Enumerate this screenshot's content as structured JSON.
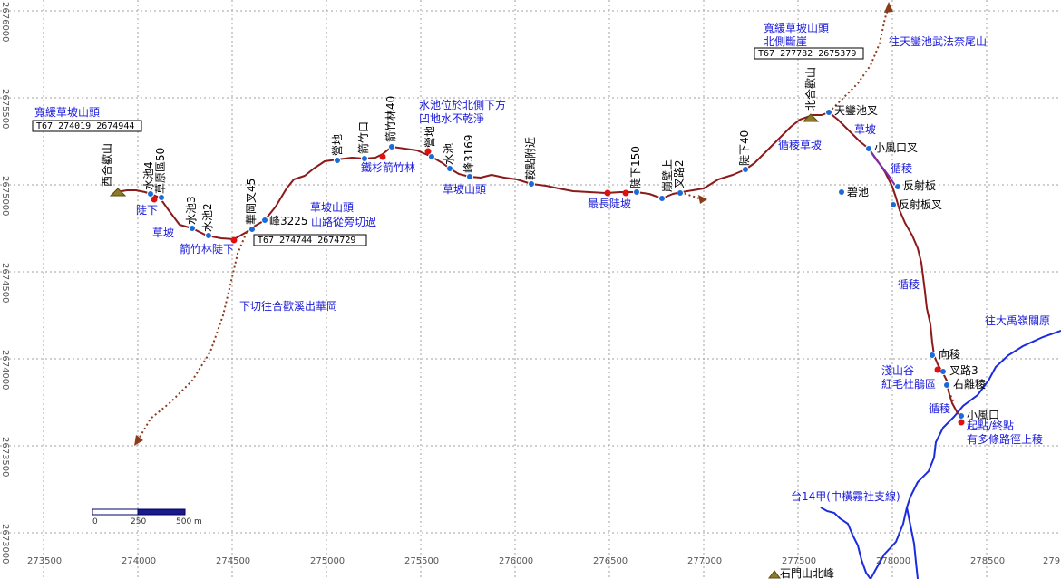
{
  "map": {
    "colors": {
      "trail": "#8b1a1a",
      "side_trail": "#7b2cb4",
      "dotted": "#8b3a1a",
      "road": "#1a2be0",
      "waypoint": "#1a6ad8",
      "red_point": "#e01010",
      "note": "#1a1adc"
    },
    "x_ticks": [
      "273500",
      "274000",
      "274500",
      "275000",
      "275500",
      "276000",
      "276500",
      "277000",
      "277500",
      "278000",
      "278500",
      "279"
    ],
    "y_ticks": [
      "2676000",
      "2675500",
      "2675000",
      "2674500",
      "2674000",
      "2673500",
      "2673000"
    ],
    "scale_bar": {
      "labels": [
        "0",
        "250",
        "500 m"
      ]
    },
    "peaks": [
      {
        "label": "西合歡山"
      },
      {
        "label": "北合歡山"
      },
      {
        "label": "石門山北峰"
      }
    ],
    "waypoints": [
      {
        "label": "水池4"
      },
      {
        "label": "草原區50"
      },
      {
        "label": "水池3"
      },
      {
        "label": "水池2"
      },
      {
        "label": "華岡叉45"
      },
      {
        "label": "峰3225"
      },
      {
        "label": "營地"
      },
      {
        "label": "箭竹口"
      },
      {
        "label": "箭竹林40"
      },
      {
        "label": "營地"
      },
      {
        "label": "水池"
      },
      {
        "label": "峰3169"
      },
      {
        "label": "鞍點附近"
      },
      {
        "label": "陡下150"
      },
      {
        "label": "崩壁上"
      },
      {
        "label": "叉路2"
      },
      {
        "label": "陡下40"
      },
      {
        "label": "天鑾池叉"
      },
      {
        "label": "小風口叉"
      },
      {
        "label": "反射板"
      },
      {
        "label": "反射板叉"
      },
      {
        "label": "碧池"
      },
      {
        "label": "向稜"
      },
      {
        "label": "叉路3"
      },
      {
        "label": "右離稜"
      },
      {
        "label": "小風口"
      }
    ],
    "notes": [
      {
        "text": "陡下"
      },
      {
        "text": "草坡"
      },
      {
        "text": "箭竹林陡下"
      },
      {
        "text": "下切往合歡溪出華岡"
      },
      {
        "text": "草坡山頭"
      },
      {
        "text": "山路從旁切過"
      },
      {
        "text": "鐵杉箭竹林"
      },
      {
        "text": "水池位於北側下方"
      },
      {
        "text": "凹地水不乾淨"
      },
      {
        "text": "草坡山頭"
      },
      {
        "text": "最長陡坡"
      },
      {
        "text": "循稜草坡"
      },
      {
        "text": "寬緩草坡山頭"
      },
      {
        "text": "北側斷崖"
      },
      {
        "text": "往天鑾池武法奈尾山"
      },
      {
        "text": "草坡"
      },
      {
        "text": "循稜"
      },
      {
        "text": "循稜"
      },
      {
        "text": "往大禹嶺關原"
      },
      {
        "text": "淺山谷"
      },
      {
        "text": "紅毛杜鵑區"
      },
      {
        "text": "循稜"
      },
      {
        "text": "起點/終點"
      },
      {
        "text": "有多條路徑上稜"
      },
      {
        "text": "台14甲(中橫霧社支線)"
      },
      {
        "text": "寬緩草坡山頭"
      }
    ],
    "coord_boxes": [
      {
        "text": "T67   274019 2674944"
      },
      {
        "text": "T67   274744 2674729"
      },
      {
        "text": "T67   277782 2675379"
      }
    ]
  }
}
